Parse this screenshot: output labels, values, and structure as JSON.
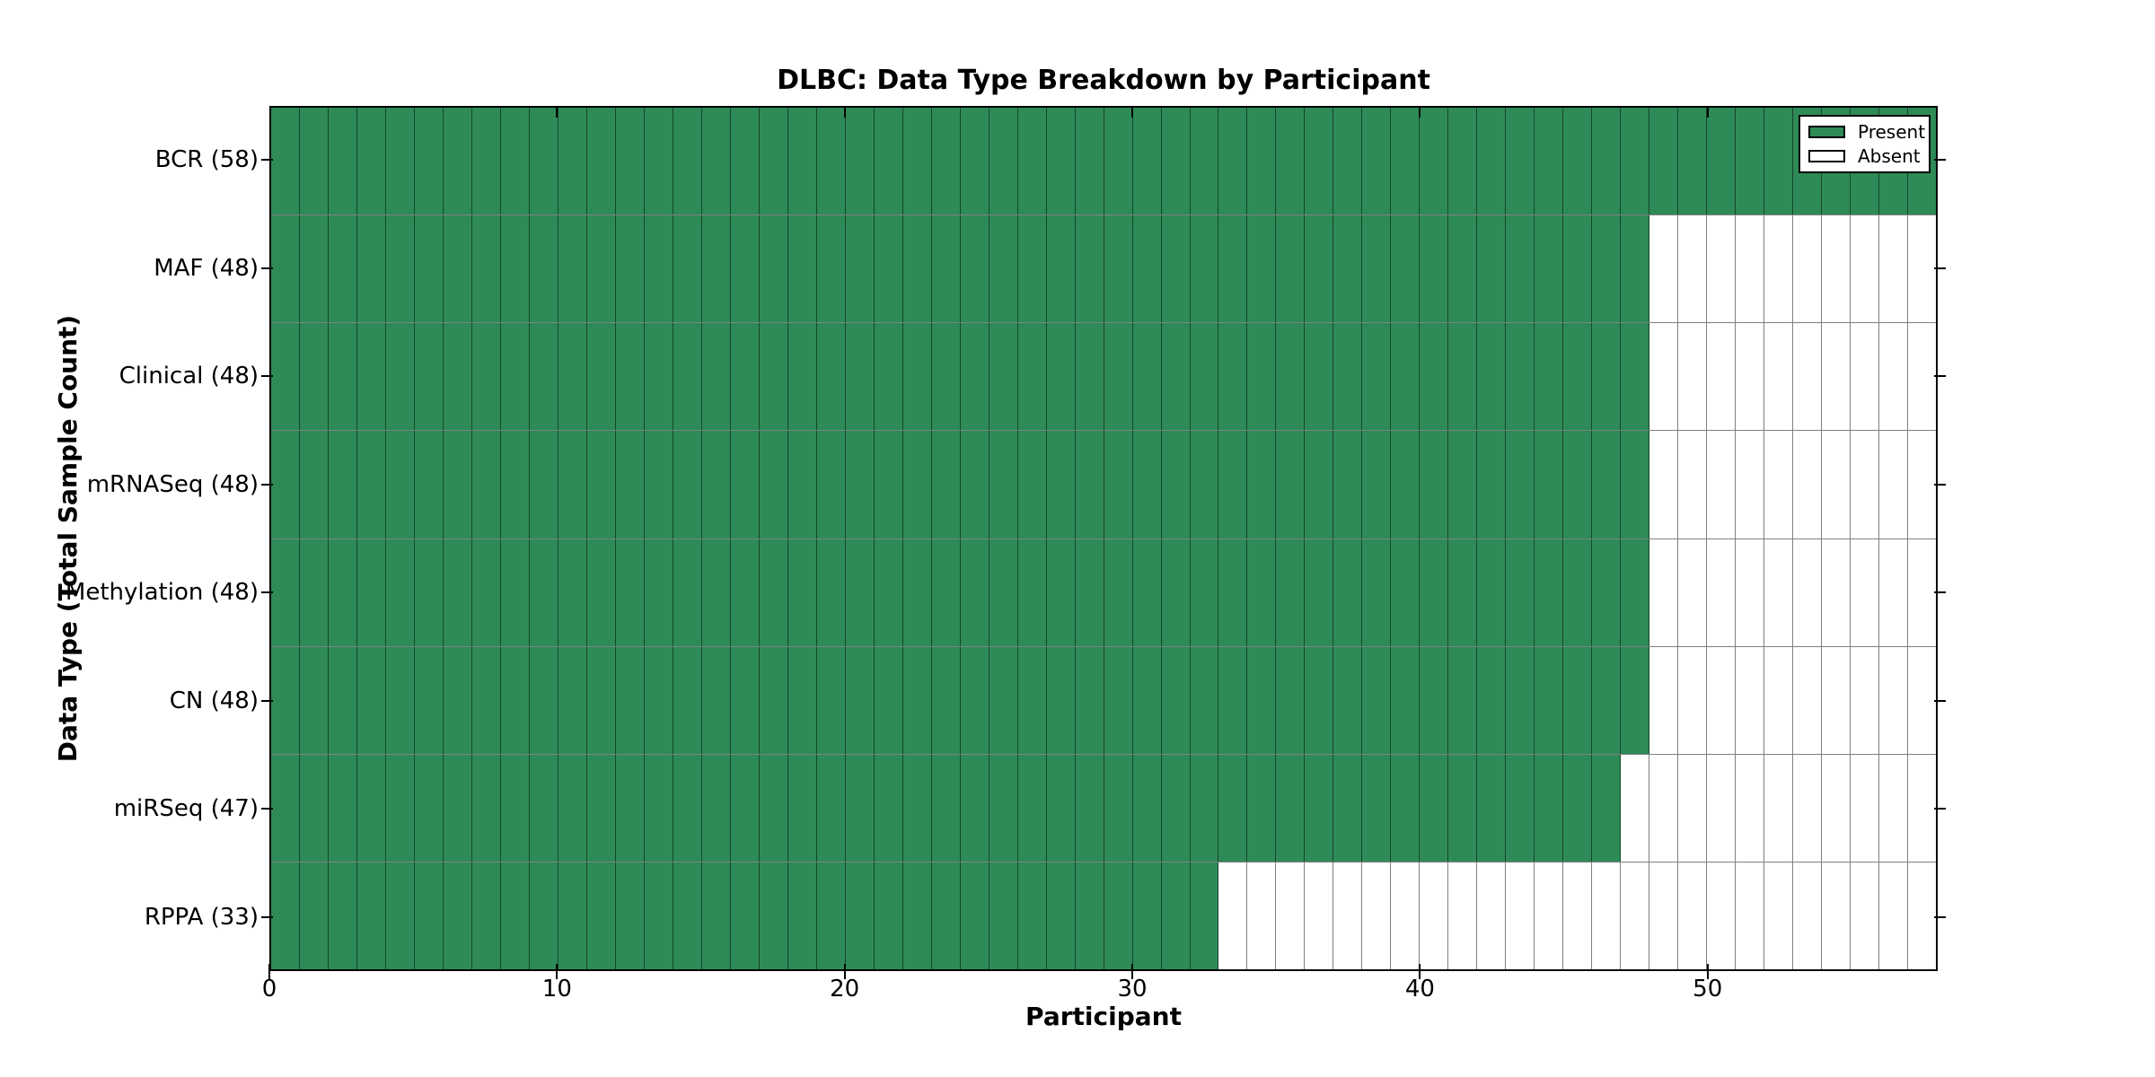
{
  "chart_data": {
    "type": "heatmap",
    "title": "DLBC: Data Type Breakdown by Participant",
    "xlabel": "Participant",
    "ylabel": "Data Type (Total Sample Count)",
    "x_ticks": [
      0,
      10,
      20,
      30,
      40,
      50
    ],
    "x_range": [
      0,
      58
    ],
    "n_participants": 58,
    "grid": "cell-borders",
    "rows": [
      {
        "label": "BCR (58)",
        "data_type": "BCR",
        "total_sample_count": 58,
        "present_participants": 58
      },
      {
        "label": "MAF (48)",
        "data_type": "MAF",
        "total_sample_count": 48,
        "present_participants": 48
      },
      {
        "label": "Clinical (48)",
        "data_type": "Clinical",
        "total_sample_count": 48,
        "present_participants": 48
      },
      {
        "label": "mRNASeq (48)",
        "data_type": "mRNASeq",
        "total_sample_count": 48,
        "present_participants": 48
      },
      {
        "label": "Methylation (48)",
        "data_type": "Methylation",
        "total_sample_count": 48,
        "present_participants": 48
      },
      {
        "label": "CN (48)",
        "data_type": "CN",
        "total_sample_count": 48,
        "present_participants": 48
      },
      {
        "label": "miRSeq (47)",
        "data_type": "miRSeq",
        "total_sample_count": 47,
        "present_participants": 47
      },
      {
        "label": "RPPA (33)",
        "data_type": "RPPA",
        "total_sample_count": 33,
        "present_participants": 33
      }
    ],
    "legend": {
      "position": "upper right",
      "entries": [
        {
          "label": "Present",
          "color": "#2e8b57"
        },
        {
          "label": "Absent",
          "color": "#ffffff"
        }
      ]
    },
    "colors": {
      "present": "#2e8b57",
      "absent": "#ffffff",
      "cell_edge": "rgba(0,0,0,0.5)",
      "frame": "#000000",
      "background": "#ffffff",
      "text": "#000000"
    }
  }
}
